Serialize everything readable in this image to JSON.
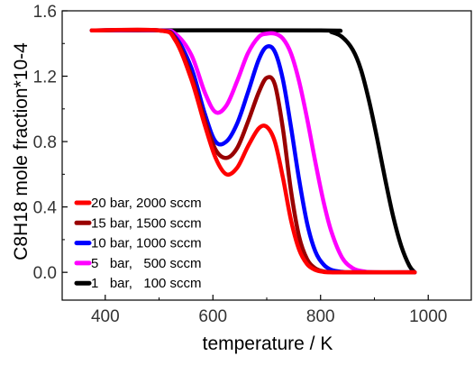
{
  "chart_data": {
    "type": "line",
    "xlabel": "temperature / K",
    "ylabel": "C8H18 mole fraction*10-4",
    "xlim": [
      320,
      1080
    ],
    "ylim": [
      -0.17,
      1.6
    ],
    "x_ticks": [
      400,
      600,
      800,
      1000
    ],
    "y_ticks": [
      0.0,
      0.4,
      0.8,
      1.2,
      1.6
    ],
    "x_tick_labels": [
      "400",
      "600",
      "800",
      "1000"
    ],
    "y_tick_labels": [
      "0.0",
      "0.4",
      "0.8",
      "1.2",
      "1.6"
    ],
    "grid": false,
    "legend_position": "lower-left",
    "series": [
      {
        "name": "20 bar, 2000 sccm",
        "color": "#ff0000",
        "x": [
          375,
          500,
          530,
          560,
          585,
          605,
          625,
          645,
          665,
          685,
          700,
          715,
          730,
          745,
          760,
          775,
          790,
          805,
          820,
          840,
          975
        ],
        "y": [
          1.48,
          1.48,
          1.42,
          1.18,
          0.9,
          0.7,
          0.6,
          0.64,
          0.77,
          0.88,
          0.89,
          0.8,
          0.58,
          0.32,
          0.14,
          0.05,
          0.015,
          0.003,
          0.0,
          0.0,
          0.0
        ]
      },
      {
        "name": "15 bar, 1500 sccm",
        "color": "#990000",
        "x": [
          375,
          500,
          530,
          560,
          585,
          605,
          625,
          645,
          665,
          685,
          700,
          715,
          730,
          745,
          760,
          775,
          790,
          805,
          820,
          840,
          975
        ],
        "y": [
          1.48,
          1.48,
          1.43,
          1.2,
          0.93,
          0.75,
          0.7,
          0.76,
          0.92,
          1.1,
          1.19,
          1.15,
          0.88,
          0.5,
          0.22,
          0.08,
          0.025,
          0.006,
          0.001,
          0.0,
          0.0
        ]
      },
      {
        "name": "10 bar, 1000 sccm",
        "color": "#0000ff",
        "x": [
          375,
          500,
          530,
          560,
          585,
          605,
          625,
          645,
          665,
          685,
          700,
          715,
          730,
          745,
          760,
          775,
          790,
          805,
          820,
          840,
          860,
          975
        ],
        "y": [
          1.48,
          1.48,
          1.44,
          1.25,
          0.97,
          0.8,
          0.8,
          0.91,
          1.1,
          1.3,
          1.38,
          1.35,
          1.18,
          0.89,
          0.57,
          0.3,
          0.13,
          0.05,
          0.015,
          0.003,
          0.0,
          0.0
        ]
      },
      {
        "name": "5   bar,   500 sccm",
        "color": "#ff00ff",
        "x": [
          375,
          500,
          530,
          560,
          585,
          605,
          625,
          645,
          665,
          685,
          700,
          715,
          730,
          745,
          760,
          775,
          790,
          805,
          820,
          840,
          860,
          880,
          900,
          975
        ],
        "y": [
          1.48,
          1.48,
          1.46,
          1.33,
          1.1,
          0.98,
          1.02,
          1.17,
          1.34,
          1.44,
          1.46,
          1.46,
          1.43,
          1.34,
          1.17,
          0.94,
          0.68,
          0.44,
          0.25,
          0.09,
          0.025,
          0.006,
          0.0,
          0.0
        ]
      },
      {
        "name": "1   bar,   100 sccm",
        "color": "#000000",
        "x": [
          375,
          800,
          820,
          840,
          860,
          875,
          890,
          905,
          920,
          935,
          950,
          965,
          975
        ],
        "y": [
          1.48,
          1.48,
          1.47,
          1.44,
          1.36,
          1.24,
          1.05,
          0.82,
          0.57,
          0.34,
          0.16,
          0.04,
          0.0
        ]
      }
    ]
  }
}
